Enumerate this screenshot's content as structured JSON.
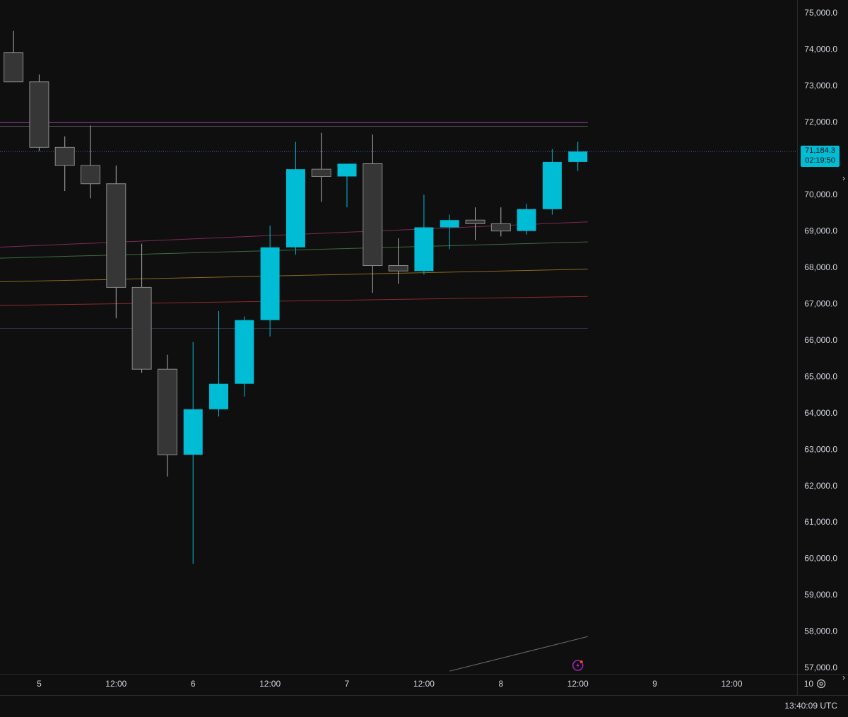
{
  "chart_data": {
    "type": "candlestick",
    "title": "",
    "colors": {
      "up": "#00bcd4",
      "down": "#363636",
      "down_border": "#8a8a8a",
      "wick_down": "#b0b0b0",
      "background": "#0f0f0f"
    },
    "y_axis": {
      "range": [
        56700,
        75350
      ],
      "ticks": [
        "75,000.0",
        "74,000.0",
        "73,000.0",
        "72,000.0",
        "70,000.0",
        "69,000.0",
        "68,000.0",
        "67,000.0",
        "66,000.0",
        "65,000.0",
        "64,000.0",
        "63,000.0",
        "62,000.0",
        "61,000.0",
        "60,000.0",
        "59,000.0",
        "58,000.0",
        "57,000.0"
      ],
      "tick_values": [
        75000,
        74000,
        73000,
        72000,
        70000,
        69000,
        68000,
        67000,
        66000,
        65000,
        64000,
        63000,
        62000,
        61000,
        60000,
        59000,
        58000,
        57000
      ]
    },
    "x_axis": {
      "ticks": [
        "5",
        "12:00",
        "6",
        "12:00",
        "7",
        "12:00",
        "8",
        "12:00",
        "9",
        "12:00",
        "10"
      ],
      "tick_slots": [
        0.7,
        3.7,
        6.7,
        9.7,
        12.7,
        15.7,
        18.7,
        21.7,
        24.7,
        27.7,
        30.7
      ]
    },
    "candles": [
      {
        "slot": -0.3,
        "open": 73900,
        "high": 74500,
        "low": 73100,
        "close": 73100
      },
      {
        "slot": 0.7,
        "open": 73100,
        "high": 73300,
        "low": 71200,
        "close": 71300
      },
      {
        "slot": 1.7,
        "open": 71300,
        "high": 71600,
        "low": 70100,
        "close": 70800
      },
      {
        "slot": 2.7,
        "open": 70800,
        "high": 71900,
        "low": 69900,
        "close": 70300
      },
      {
        "slot": 3.7,
        "open": 70300,
        "high": 70800,
        "low": 66600,
        "close": 67450
      },
      {
        "slot": 4.7,
        "open": 67450,
        "high": 68650,
        "low": 65100,
        "close": 65200
      },
      {
        "slot": 5.7,
        "open": 65200,
        "high": 65600,
        "low": 62250,
        "close": 62850
      },
      {
        "slot": 6.7,
        "open": 62850,
        "high": 65950,
        "low": 59850,
        "close": 64100
      },
      {
        "slot": 7.7,
        "open": 64100,
        "high": 66800,
        "low": 63900,
        "close": 64800
      },
      {
        "slot": 8.7,
        "open": 64800,
        "high": 66650,
        "low": 64450,
        "close": 66550
      },
      {
        "slot": 9.7,
        "open": 66550,
        "high": 69150,
        "low": 66100,
        "close": 68550
      },
      {
        "slot": 10.7,
        "open": 68550,
        "high": 71450,
        "low": 68350,
        "close": 70700
      },
      {
        "slot": 11.7,
        "open": 70700,
        "high": 71700,
        "low": 69800,
        "close": 70500
      },
      {
        "slot": 12.7,
        "open": 70500,
        "high": 70850,
        "low": 69650,
        "close": 70850
      },
      {
        "slot": 13.7,
        "open": 70850,
        "high": 71650,
        "low": 67300,
        "close": 68050
      },
      {
        "slot": 14.7,
        "open": 68050,
        "high": 68800,
        "low": 67550,
        "close": 67900
      },
      {
        "slot": 15.7,
        "open": 67900,
        "high": 70000,
        "low": 67800,
        "close": 69100
      },
      {
        "slot": 16.7,
        "open": 69100,
        "high": 69450,
        "low": 68500,
        "close": 69300
      },
      {
        "slot": 17.7,
        "open": 69300,
        "high": 69650,
        "low": 68750,
        "close": 69200
      },
      {
        "slot": 18.7,
        "open": 69200,
        "high": 69650,
        "low": 68850,
        "close": 69000
      },
      {
        "slot": 19.7,
        "open": 69000,
        "high": 69750,
        "low": 68900,
        "close": 69600
      },
      {
        "slot": 20.7,
        "open": 69600,
        "high": 71250,
        "low": 69450,
        "close": 70900
      },
      {
        "slot": 21.7,
        "open": 70900,
        "high": 71450,
        "low": 70650,
        "close": 71184.3
      }
    ],
    "horizontal_lines": [
      {
        "price": 71184.3,
        "color": "#3a5b8a",
        "style": "dotted"
      },
      {
        "price": 71980,
        "color": "#7e3a8a"
      },
      {
        "price": 71880,
        "color": "#5a5a5a"
      },
      {
        "price": 66320,
        "color": "#2c3045"
      }
    ],
    "trend_lines": [
      {
        "from": {
          "slot": -1,
          "price": 68550
        },
        "to": {
          "slot": 21.7,
          "price": 69250
        },
        "color": "#7d2a55"
      },
      {
        "from": {
          "slot": -1,
          "price": 68250
        },
        "to": {
          "slot": 21.7,
          "price": 68700
        },
        "color": "#3d6b3d"
      },
      {
        "from": {
          "slot": -1,
          "price": 67600
        },
        "to": {
          "slot": 21.7,
          "price": 67950
        },
        "color": "#8a6a20"
      },
      {
        "from": {
          "slot": -1,
          "price": 66950
        },
        "to": {
          "slot": 21.7,
          "price": 67200
        },
        "color": "#8a2a2a"
      },
      {
        "from": {
          "slot": 16.7,
          "price": 56900
        },
        "to": {
          "slot": 21.7,
          "price": 57850
        },
        "color": "#6a6a6a"
      }
    ],
    "current_price": {
      "label": "71,184.3",
      "countdown": "02:19:50"
    }
  },
  "footer": {
    "clock": "13:40:09 UTC"
  },
  "icons": {
    "settings": "gear-icon",
    "alert": "lightning-icon",
    "scroll": "chevron-right-icon"
  }
}
